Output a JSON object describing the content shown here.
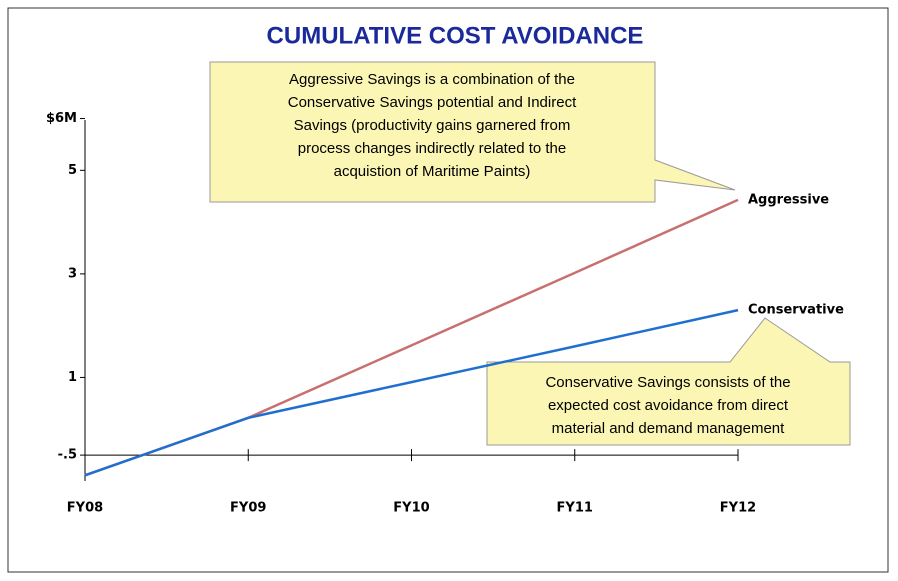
{
  "chart_data": {
    "type": "line",
    "title": "CUMULATIVE COST AVOIDANCE",
    "categories": [
      "FY08",
      "FY09",
      "FY10",
      "FY11",
      "FY12"
    ],
    "series": [
      {
        "name": "Aggressive",
        "color": "#c87070",
        "values": [
          -0.89,
          0.22,
          1.62,
          3.02,
          4.43
        ]
      },
      {
        "name": "Conservative",
        "color": "#1f6fd0",
        "values": [
          -0.89,
          0.22,
          0.91,
          1.6,
          2.3
        ]
      }
    ],
    "ylim": [
      -1,
      6.3
    ],
    "yticks": [
      {
        "value": -0.5,
        "label": "-.5"
      },
      1,
      3,
      5,
      {
        "value": 6,
        "label": "$6M"
      }
    ],
    "annotations": [
      {
        "lines": [
          "Aggressive Savings is a combination of the",
          "Conservative Savings potential and Indirect",
          "Savings (productivity gains garnered from",
          "process changes indirectly related to the",
          "acquistion of Maritime Paints)"
        ]
      },
      {
        "lines": [
          "Conservative Savings consists of the",
          "expected cost avoidance from direct",
          "material and demand management"
        ]
      }
    ]
  }
}
